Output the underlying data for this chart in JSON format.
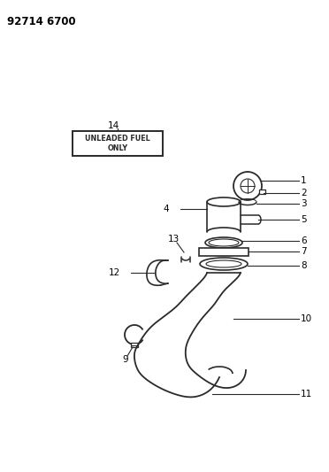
{
  "title": "92714 6700",
  "background_color": "#ffffff",
  "line_color": "#2a2a2a",
  "label_color": "#000000",
  "label_box_text": "UNLEADED FUEL\nONLY",
  "figsize": [
    3.72,
    5.33
  ],
  "dpi": 100
}
